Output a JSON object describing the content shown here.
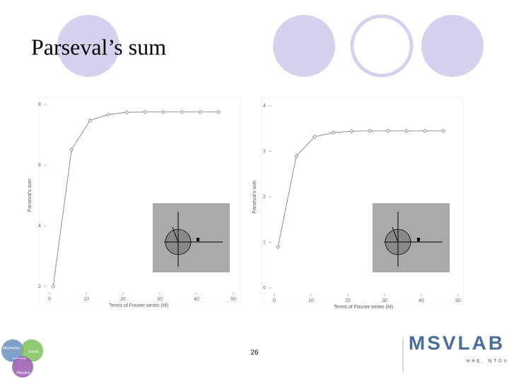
{
  "title": "Parseval’s sum",
  "page_number": "26",
  "logo": {
    "name": "MSVLAB",
    "subtitle": "HHE, NTOU",
    "circles": [
      "Mechanics",
      "Sound",
      "Laboratory",
      "Vibration"
    ]
  },
  "chart_data": [
    {
      "type": "line",
      "xlabel": "Terms of Fourier series (M)",
      "ylabel": "Parseval's sum",
      "x": [
        1,
        6,
        11,
        16,
        21,
        26,
        31,
        36,
        41,
        46
      ],
      "series": [
        {
          "color": "#777777",
          "values": [
            2.0,
            6.51,
            7.47,
            7.67,
            7.74,
            7.75,
            7.75,
            7.75,
            7.75,
            7.75
          ]
        }
      ],
      "xlim": [
        0,
        50
      ],
      "xticks": [
        0,
        10,
        20,
        30,
        40,
        50
      ],
      "ylim": [
        2,
        8
      ],
      "yticks": [
        2,
        4,
        6,
        8
      ]
    },
    {
      "type": "line",
      "xlabel": "Terms of Fourier series (M)",
      "ylabel": "Parseval's sum",
      "x": [
        1,
        6,
        11,
        16,
        21,
        26,
        31,
        36,
        41,
        46
      ],
      "series": [
        {
          "color": "#777777",
          "values": [
            0.9,
            2.9,
            3.32,
            3.41,
            3.44,
            3.45,
            3.45,
            3.45,
            3.45,
            3.45
          ]
        }
      ],
      "xlim": [
        0,
        50
      ],
      "xticks": [
        0,
        10,
        20,
        30,
        40,
        50
      ],
      "ylim": [
        0,
        4
      ],
      "yticks": [
        0,
        1,
        2,
        3,
        4
      ]
    }
  ]
}
